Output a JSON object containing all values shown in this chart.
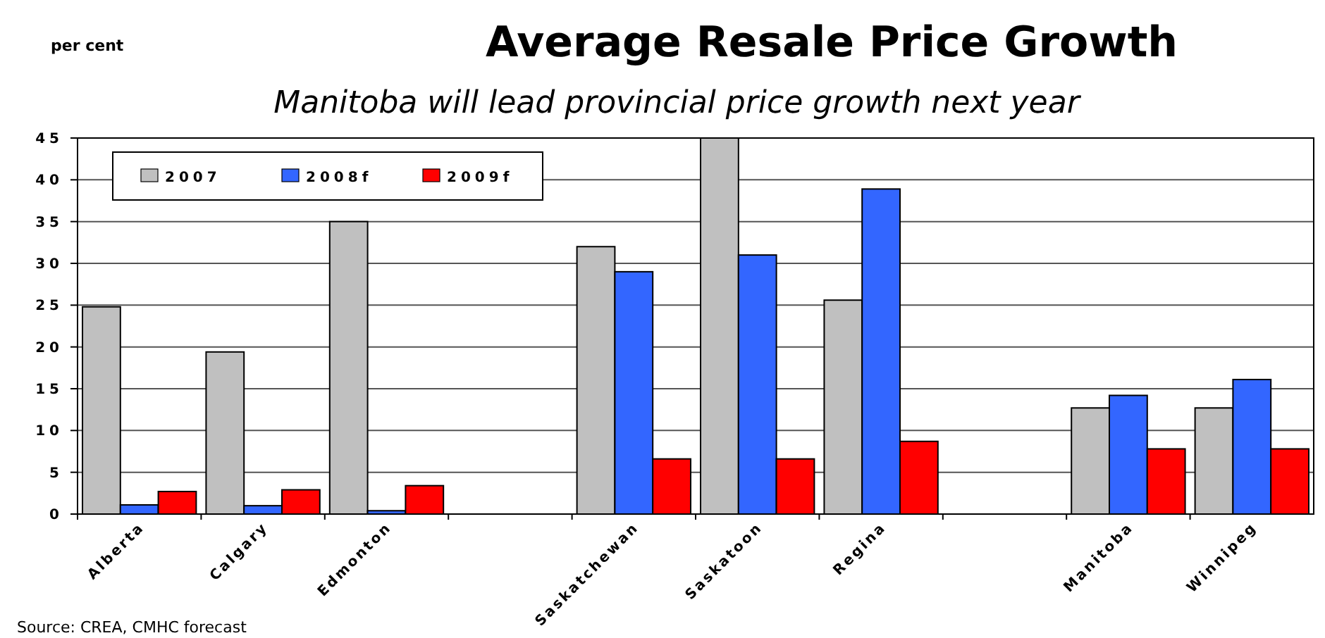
{
  "chart_data": {
    "type": "bar",
    "title": "Average Resale Price Growth",
    "subtitle": "Manitoba will lead provincial price growth next year",
    "ylabel": "per cent",
    "annotations": [
      "Source: CREA, CMHC forecast"
    ],
    "categories": [
      "Alberta",
      "Calgary",
      "Edmonton",
      null,
      "Saskatchewan",
      "Saskatoon",
      "Regina",
      null,
      "Manitoba",
      "Winnipeg"
    ],
    "series": [
      {
        "name": "2007",
        "color": "#c0c0c0",
        "values": [
          24.8,
          19.4,
          35,
          null,
          32,
          45,
          25.6,
          null,
          12.7,
          12.7
        ]
      },
      {
        "name": "2008f",
        "color": "#3366ff",
        "values": [
          1.1,
          1,
          0.4,
          null,
          29,
          31,
          38.9,
          null,
          14.2,
          16.1
        ]
      },
      {
        "name": "2009f",
        "color": "#ff0000",
        "values": [
          2.7,
          2.9,
          3.4,
          null,
          6.6,
          6.6,
          8.7,
          null,
          7.8,
          7.8
        ]
      }
    ],
    "ylim": [
      0,
      45
    ],
    "yticks": [
      0,
      5,
      10,
      15,
      20,
      25,
      30,
      35,
      40,
      45
    ],
    "grid": "y",
    "legend": "top left"
  }
}
